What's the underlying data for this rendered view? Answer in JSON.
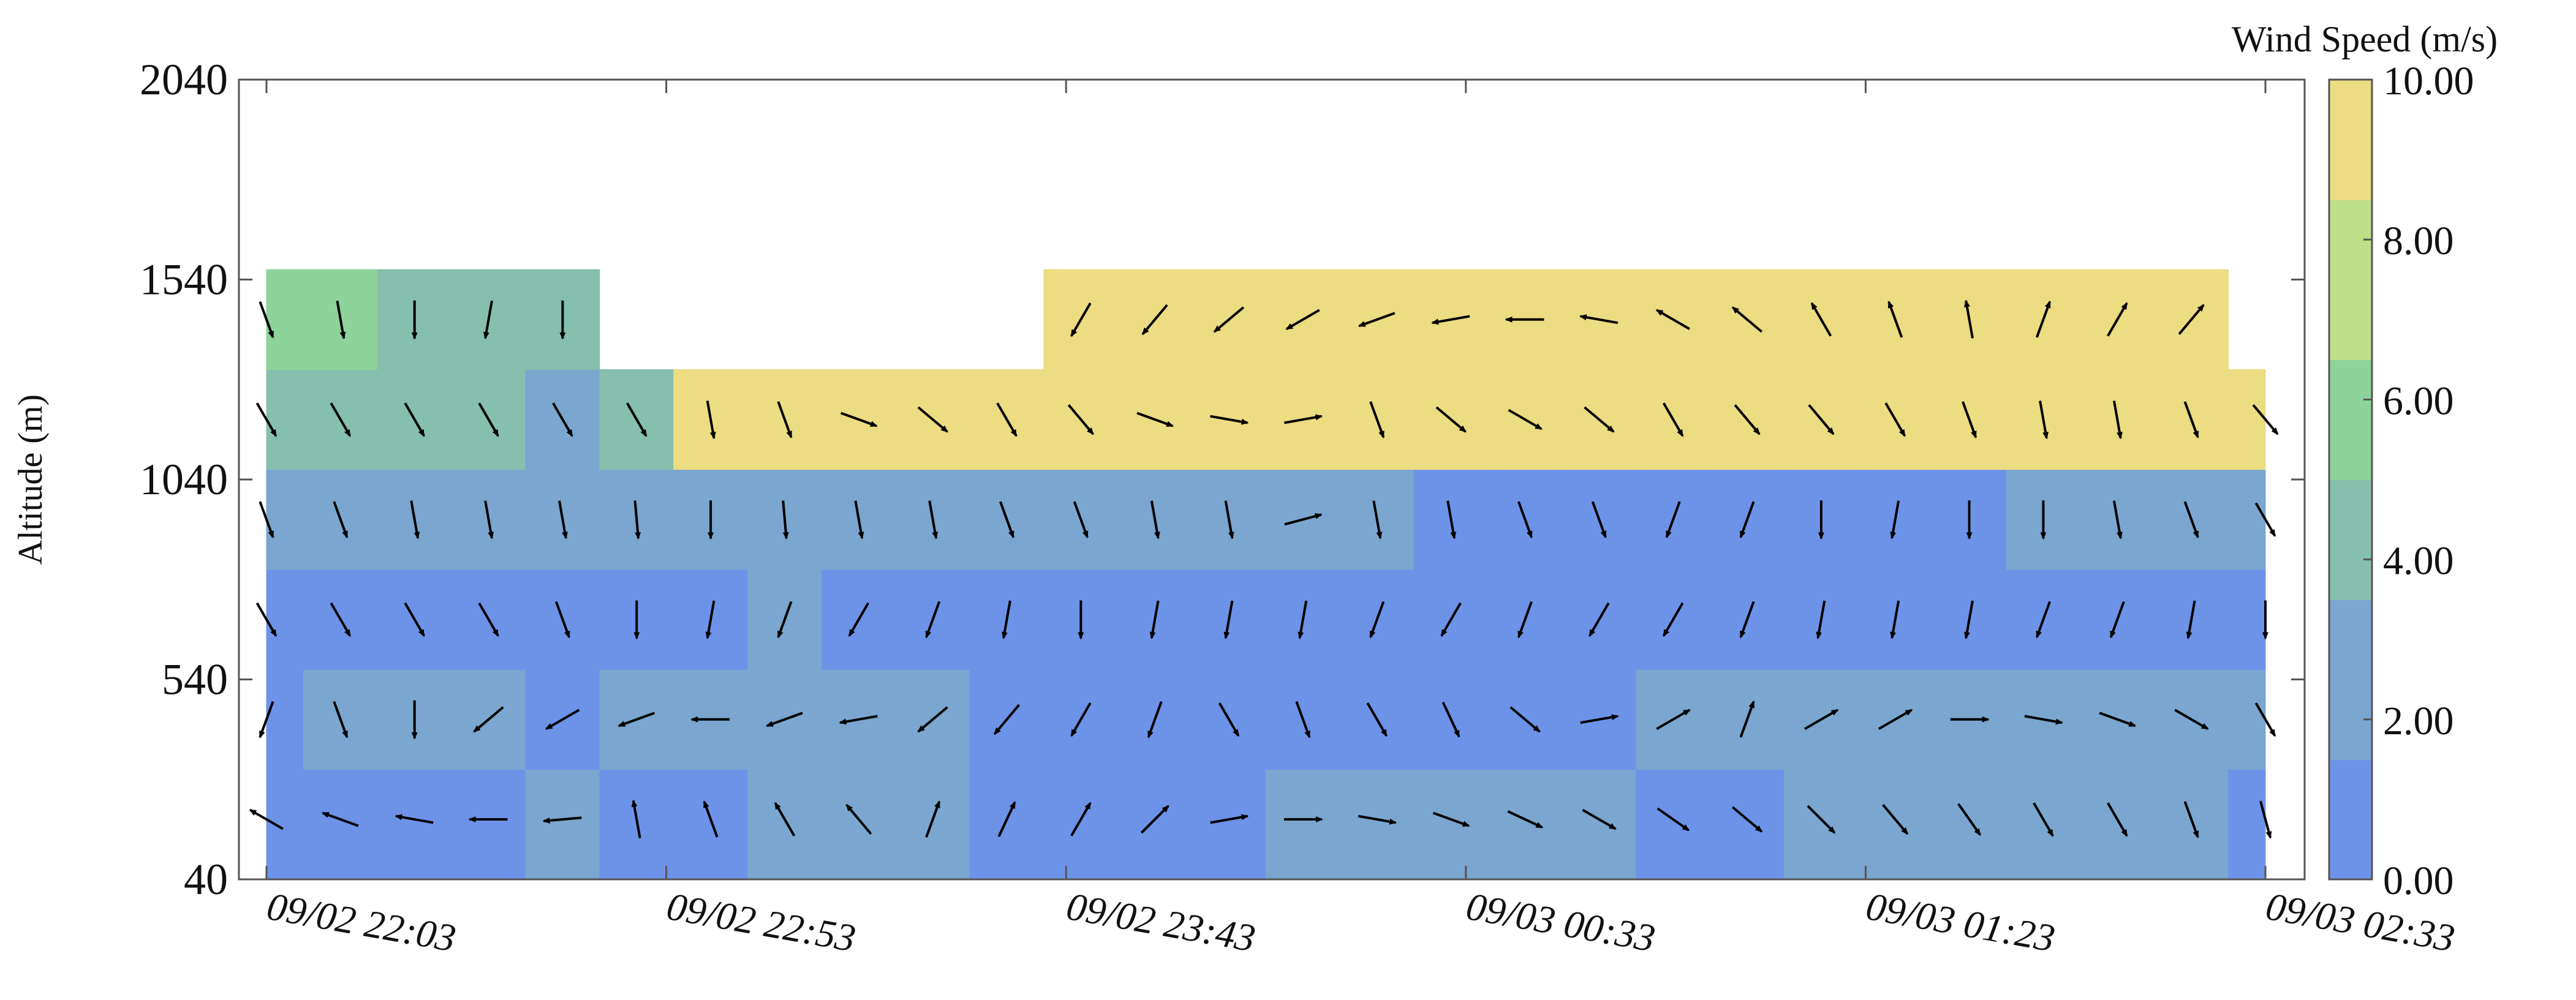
{
  "chart_data": {
    "type": "heatmap",
    "subtype": "filled contour with wind vector arrows",
    "ylabel": "Altitude (m)",
    "xlabel": "",
    "x_ticks": [
      "09/02 22:03",
      "09/02 22:53",
      "09/02 23:43",
      "09/03 00:33",
      "09/03 01:23",
      "09/03 02:33"
    ],
    "y_ticks": [
      "2040",
      "1540",
      "1040",
      "540",
      "40"
    ],
    "ylim": [
      40,
      2040
    ],
    "xlim": [
      "09/02 22:03",
      "09/03 02:33"
    ],
    "times": [
      "22:03",
      "22:13",
      "22:23",
      "22:33",
      "22:43",
      "22:53",
      "23:03",
      "23:13",
      "23:23",
      "23:33",
      "23:43",
      "23:53",
      "00:03",
      "00:13",
      "00:23",
      "00:33",
      "00:43",
      "00:53",
      "01:03",
      "01:13",
      "01:23",
      "01:33",
      "01:43",
      "01:53",
      "02:03",
      "02:13",
      "02:23",
      "02:33"
    ],
    "altitudes": [
      190,
      440,
      690,
      940,
      1190,
      1440
    ],
    "colorbar": {
      "title": "Wind Speed (m/s)",
      "ticks": [
        "10.00",
        "8.00",
        "6.00",
        "4.00",
        "2.00",
        "0.00"
      ],
      "range": [
        0,
        10
      ],
      "colors": [
        "#6d93e8",
        "#7aa6cf",
        "#86bfae",
        "#8ed39a",
        "#bfdf88",
        "#ecdc82"
      ]
    },
    "speed_grid": [
      [
        1.2,
        1.0,
        1.4,
        1.6,
        1.8,
        1.6,
        1.4,
        1.8,
        2.2,
        2.0,
        1.6,
        1.4,
        1.2,
        1.6,
        2.4,
        2.2,
        1.8,
        2.4,
        1.8,
        1.4,
        1.6,
        2.0,
        2.4,
        2.6,
        2.6,
        2.8,
        2.4,
        1.6
      ],
      [
        1.6,
        1.8,
        2.2,
        2.0,
        1.6,
        2.2,
        2.8,
        2.6,
        2.4,
        2.0,
        1.6,
        1.4,
        1.4,
        1.2,
        1.2,
        1.0,
        1.2,
        1.4,
        1.6,
        1.8,
        2.0,
        2.2,
        2.6,
        2.4,
        2.4,
        2.2,
        2.4,
        2.2
      ],
      [
        1.2,
        1.4,
        1.2,
        1.0,
        1.0,
        1.2,
        1.4,
        1.8,
        1.6,
        1.4,
        1.2,
        1.0,
        1.0,
        1.0,
        1.2,
        0.6,
        0.6,
        0.8,
        0.6,
        0.6,
        0.6,
        0.8,
        1.0,
        1.0,
        1.0,
        1.6,
        1.0,
        0.8
      ],
      [
        2.8,
        2.6,
        2.6,
        2.8,
        3.0,
        2.8,
        2.6,
        2.4,
        2.4,
        2.6,
        2.8,
        3.0,
        2.8,
        2.6,
        2.4,
        2.0,
        1.6,
        1.4,
        1.2,
        1.2,
        1.0,
        1.0,
        1.2,
        1.4,
        1.8,
        2.2,
        2.4,
        2.6
      ],
      [
        4.2,
        4.0,
        3.6,
        3.4,
        3.2,
        3.4,
        8.6,
        9.0,
        9.2,
        9.4,
        9.6,
        9.8,
        9.4,
        9.0,
        8.8,
        9.0,
        9.2,
        9.4,
        9.6,
        9.6,
        9.4,
        9.2,
        8.8,
        8.6,
        9.0,
        9.2,
        9.4,
        9.6
      ],
      [
        5.2,
        5.0,
        4.6,
        4.4,
        4.8,
        null,
        null,
        null,
        null,
        null,
        null,
        9.2,
        9.4,
        9.6,
        9.8,
        9.6,
        9.4,
        9.2,
        9.6,
        9.8,
        9.6,
        9.2,
        9.0,
        8.8,
        9.2,
        9.6,
        9.8,
        null
      ]
    ],
    "direction_grid_deg": [
      [
        300,
        290,
        280,
        270,
        265,
        350,
        340,
        330,
        320,
        20,
        25,
        30,
        45,
        80,
        90,
        100,
        110,
        115,
        120,
        125,
        130,
        135,
        140,
        145,
        150,
        150,
        160,
        165
      ],
      [
        200,
        160,
        180,
        230,
        240,
        250,
        270,
        250,
        260,
        230,
        220,
        210,
        200,
        150,
        160,
        150,
        155,
        130,
        80,
        60,
        20,
        60,
        60,
        90,
        100,
        110,
        120,
        150
      ],
      [
        150,
        150,
        150,
        150,
        160,
        180,
        190,
        200,
        210,
        200,
        190,
        180,
        190,
        190,
        190,
        200,
        210,
        200,
        210,
        210,
        200,
        190,
        190,
        190,
        200,
        200,
        190,
        180
      ],
      [
        160,
        160,
        170,
        170,
        170,
        175,
        180,
        175,
        170,
        170,
        160,
        160,
        170,
        170,
        75,
        170,
        170,
        160,
        160,
        200,
        200,
        180,
        190,
        180,
        180,
        170,
        160,
        150
      ],
      [
        150,
        150,
        150,
        150,
        150,
        150,
        170,
        160,
        110,
        130,
        150,
        140,
        110,
        100,
        80,
        160,
        130,
        120,
        130,
        150,
        140,
        140,
        150,
        160,
        170,
        170,
        160,
        140
      ],
      [
        160,
        170,
        180,
        190,
        180,
        170,
        170,
        165,
        150,
        170,
        200,
        210,
        220,
        230,
        240,
        250,
        260,
        270,
        280,
        300,
        310,
        330,
        340,
        350,
        20,
        30,
        40,
        50
      ]
    ]
  }
}
